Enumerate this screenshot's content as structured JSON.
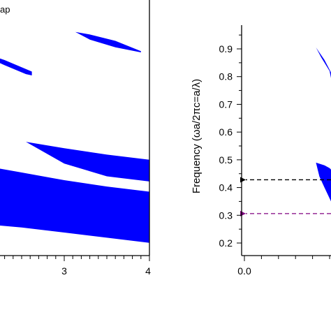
{
  "colors": {
    "band": "#0000ff",
    "axis": "#000000",
    "arrow_black": "#000000",
    "arrow_purple": "#800080"
  },
  "chart_data": [
    {
      "type": "area",
      "title_fragment": "ap",
      "xlim": [
        2,
        4
      ],
      "x_ticks": [
        {
          "value": 3,
          "label": "3"
        },
        {
          "value": 4,
          "label": "4"
        }
      ],
      "regions": [
        {
          "upper": [
            [
              2.0,
              0.355
            ],
            [
              2.5,
              0.325
            ],
            [
              3.0,
              0.295
            ],
            [
              3.5,
              0.27
            ],
            [
              4.0,
              0.25
            ]
          ],
          "lower": [
            [
              2.0,
              0.125
            ],
            [
              2.5,
              0.11
            ],
            [
              3.0,
              0.09
            ],
            [
              3.5,
              0.07
            ],
            [
              4.0,
              0.05
            ]
          ]
        },
        {
          "upper": [
            [
              2.55,
              0.445
            ],
            [
              3.0,
              0.42
            ],
            [
              3.5,
              0.395
            ],
            [
              4.0,
              0.375
            ]
          ],
          "lower": [
            [
              2.55,
              0.445
            ],
            [
              3.0,
              0.36
            ],
            [
              3.5,
              0.31
            ],
            [
              4.0,
              0.29
            ]
          ]
        },
        {
          "upper": [
            [
              2.0,
              0.8
            ],
            [
              2.3,
              0.765
            ],
            [
              2.55,
              0.73
            ],
            [
              2.62,
              0.72
            ]
          ],
          "lower": [
            [
              2.0,
              0.79
            ],
            [
              2.3,
              0.745
            ],
            [
              2.55,
              0.71
            ],
            [
              2.62,
              0.705
            ]
          ]
        },
        {
          "upper": [
            [
              3.13,
              0.875
            ],
            [
              3.3,
              0.865
            ],
            [
              3.6,
              0.84
            ],
            [
              3.9,
              0.8
            ]
          ],
          "lower": [
            [
              3.13,
              0.875
            ],
            [
              3.3,
              0.845
            ],
            [
              3.6,
              0.815
            ],
            [
              3.9,
              0.795
            ]
          ]
        }
      ]
    },
    {
      "type": "area",
      "ylabel": "Frequency (ωa/2πc=a/λ)",
      "ylim": [
        0.15,
        1.0
      ],
      "y_ticks": [
        {
          "value": 0.2,
          "label": "0.2"
        },
        {
          "value": 0.3,
          "label": "0.3"
        },
        {
          "value": 0.4,
          "label": "0.4"
        },
        {
          "value": 0.5,
          "label": "0.5"
        },
        {
          "value": 0.6,
          "label": "0.6"
        },
        {
          "value": 0.7,
          "label": "0.7"
        },
        {
          "value": 0.8,
          "label": "0.8"
        },
        {
          "value": 0.9,
          "label": "0.9"
        }
      ],
      "x_ticks": [
        {
          "value": 0.0,
          "label": "0.0"
        }
      ],
      "regions": [
        {
          "upper": [
            [
              0.42,
              0.905
            ],
            [
              0.47,
              0.86
            ],
            [
              0.52,
              0.815
            ],
            [
              0.55,
              0.8
            ]
          ],
          "lower": [
            [
              0.42,
              0.905
            ],
            [
              0.45,
              0.87
            ],
            [
              0.5,
              0.82
            ],
            [
              0.55,
              0.795
            ]
          ]
        },
        {
          "upper": [
            [
              0.42,
              0.49
            ],
            [
              0.47,
              0.48
            ],
            [
              0.5,
              0.47
            ],
            [
              0.55,
              0.465
            ]
          ],
          "lower": [
            [
              0.42,
              0.49
            ],
            [
              0.44,
              0.44
            ],
            [
              0.47,
              0.4
            ],
            [
              0.55,
              0.35
            ]
          ]
        }
      ],
      "reference_lines": [
        {
          "y": 0.428,
          "style": "dashed",
          "color": "black"
        },
        {
          "y": 0.306,
          "style": "dashed",
          "color": "purple"
        }
      ]
    }
  ]
}
